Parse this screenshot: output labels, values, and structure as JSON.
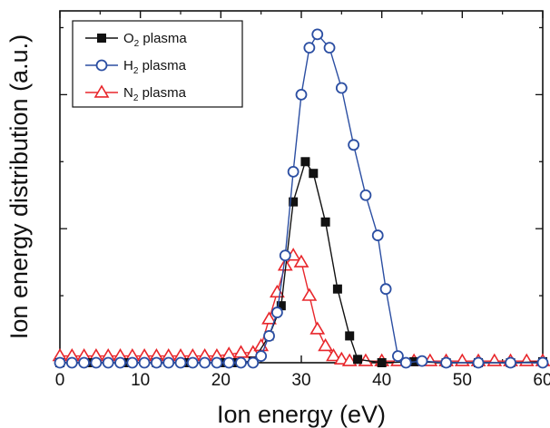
{
  "chart_data": {
    "type": "scatter",
    "xlabel": "Ion energy (eV)",
    "ylabel": "Ion energy distribution (a.u.)",
    "xlim": [
      0,
      60
    ],
    "ylim": [
      0,
      1.05
    ],
    "xticks": [
      "0",
      "10",
      "20",
      "30",
      "40",
      "50",
      "60"
    ],
    "legend_position": "top-left",
    "grid": false,
    "series": [
      {
        "name": "O2 plasma",
        "legend_main": "O",
        "legend_sub": "2",
        "legend_rest": " plasma",
        "color": "#111111",
        "marker": "filled-square",
        "points": [
          [
            0,
            0.0
          ],
          [
            4,
            0.0
          ],
          [
            8,
            0.0
          ],
          [
            12,
            0.0
          ],
          [
            16,
            0.0
          ],
          [
            20,
            0.0
          ],
          [
            22,
            0.0
          ],
          [
            24,
            0.005
          ],
          [
            26,
            0.08
          ],
          [
            27.5,
            0.17
          ],
          [
            29,
            0.48
          ],
          [
            30.5,
            0.6
          ],
          [
            31.5,
            0.565
          ],
          [
            33,
            0.42
          ],
          [
            34.5,
            0.22
          ],
          [
            36,
            0.08
          ],
          [
            37,
            0.01
          ],
          [
            40,
            0.0
          ],
          [
            44,
            0.003
          ],
          [
            48,
            0.0
          ],
          [
            52,
            0.0
          ],
          [
            56,
            0.0
          ],
          [
            60,
            0.003
          ]
        ]
      },
      {
        "name": "H2 plasma",
        "legend_main": "H",
        "legend_sub": "2",
        "legend_rest": " plasma",
        "color": "#2b4ea2",
        "marker": "open-circle",
        "points": [
          [
            0,
            0.0
          ],
          [
            1.5,
            0.0
          ],
          [
            3,
            0.0
          ],
          [
            4.5,
            0.0
          ],
          [
            6,
            0.0
          ],
          [
            7.5,
            0.0
          ],
          [
            9,
            0.0
          ],
          [
            10.5,
            0.0
          ],
          [
            12,
            0.0
          ],
          [
            13.5,
            0.0
          ],
          [
            15,
            0.0
          ],
          [
            16.5,
            0.0
          ],
          [
            18,
            0.0
          ],
          [
            19.5,
            0.0
          ],
          [
            21,
            0.0
          ],
          [
            22.5,
            0.0
          ],
          [
            24,
            0.0
          ],
          [
            25,
            0.02
          ],
          [
            26,
            0.08
          ],
          [
            27,
            0.15
          ],
          [
            28,
            0.32
          ],
          [
            29,
            0.57
          ],
          [
            30,
            0.8
          ],
          [
            31,
            0.94
          ],
          [
            32,
            0.98
          ],
          [
            33.5,
            0.94
          ],
          [
            35,
            0.82
          ],
          [
            36.5,
            0.65
          ],
          [
            38,
            0.5
          ],
          [
            39.5,
            0.38
          ],
          [
            40.5,
            0.22
          ],
          [
            42,
            0.02
          ],
          [
            43,
            0.0
          ],
          [
            45,
            0.005
          ],
          [
            48,
            0.0
          ],
          [
            52,
            0.0
          ],
          [
            56,
            0.0
          ],
          [
            60,
            0.0
          ]
        ]
      },
      {
        "name": "N2 plasma",
        "legend_main": "N",
        "legend_sub": "2",
        "legend_rest": " plasma",
        "color": "#e8262b",
        "marker": "open-triangle",
        "points": [
          [
            0,
            0.02
          ],
          [
            1.5,
            0.02
          ],
          [
            3,
            0.02
          ],
          [
            4.5,
            0.02
          ],
          [
            6,
            0.02
          ],
          [
            7.5,
            0.02
          ],
          [
            9,
            0.02
          ],
          [
            10.5,
            0.02
          ],
          [
            12,
            0.02
          ],
          [
            13.5,
            0.02
          ],
          [
            15,
            0.02
          ],
          [
            16.5,
            0.02
          ],
          [
            18,
            0.02
          ],
          [
            19.5,
            0.02
          ],
          [
            21,
            0.025
          ],
          [
            22.5,
            0.03
          ],
          [
            24,
            0.03
          ],
          [
            25,
            0.05
          ],
          [
            26,
            0.13
          ],
          [
            27,
            0.21
          ],
          [
            28,
            0.29
          ],
          [
            29,
            0.32
          ],
          [
            30,
            0.3
          ],
          [
            31,
            0.2
          ],
          [
            32,
            0.1
          ],
          [
            33,
            0.05
          ],
          [
            34,
            0.02
          ],
          [
            35,
            0.01
          ],
          [
            36,
            0.005
          ],
          [
            38,
            0.005
          ],
          [
            40,
            0.005
          ],
          [
            42,
            0.005
          ],
          [
            44,
            0.005
          ],
          [
            46,
            0.005
          ],
          [
            48,
            0.005
          ],
          [
            50,
            0.005
          ],
          [
            52,
            0.005
          ],
          [
            54,
            0.005
          ],
          [
            56,
            0.005
          ],
          [
            58,
            0.005
          ],
          [
            60,
            0.005
          ]
        ]
      }
    ]
  }
}
